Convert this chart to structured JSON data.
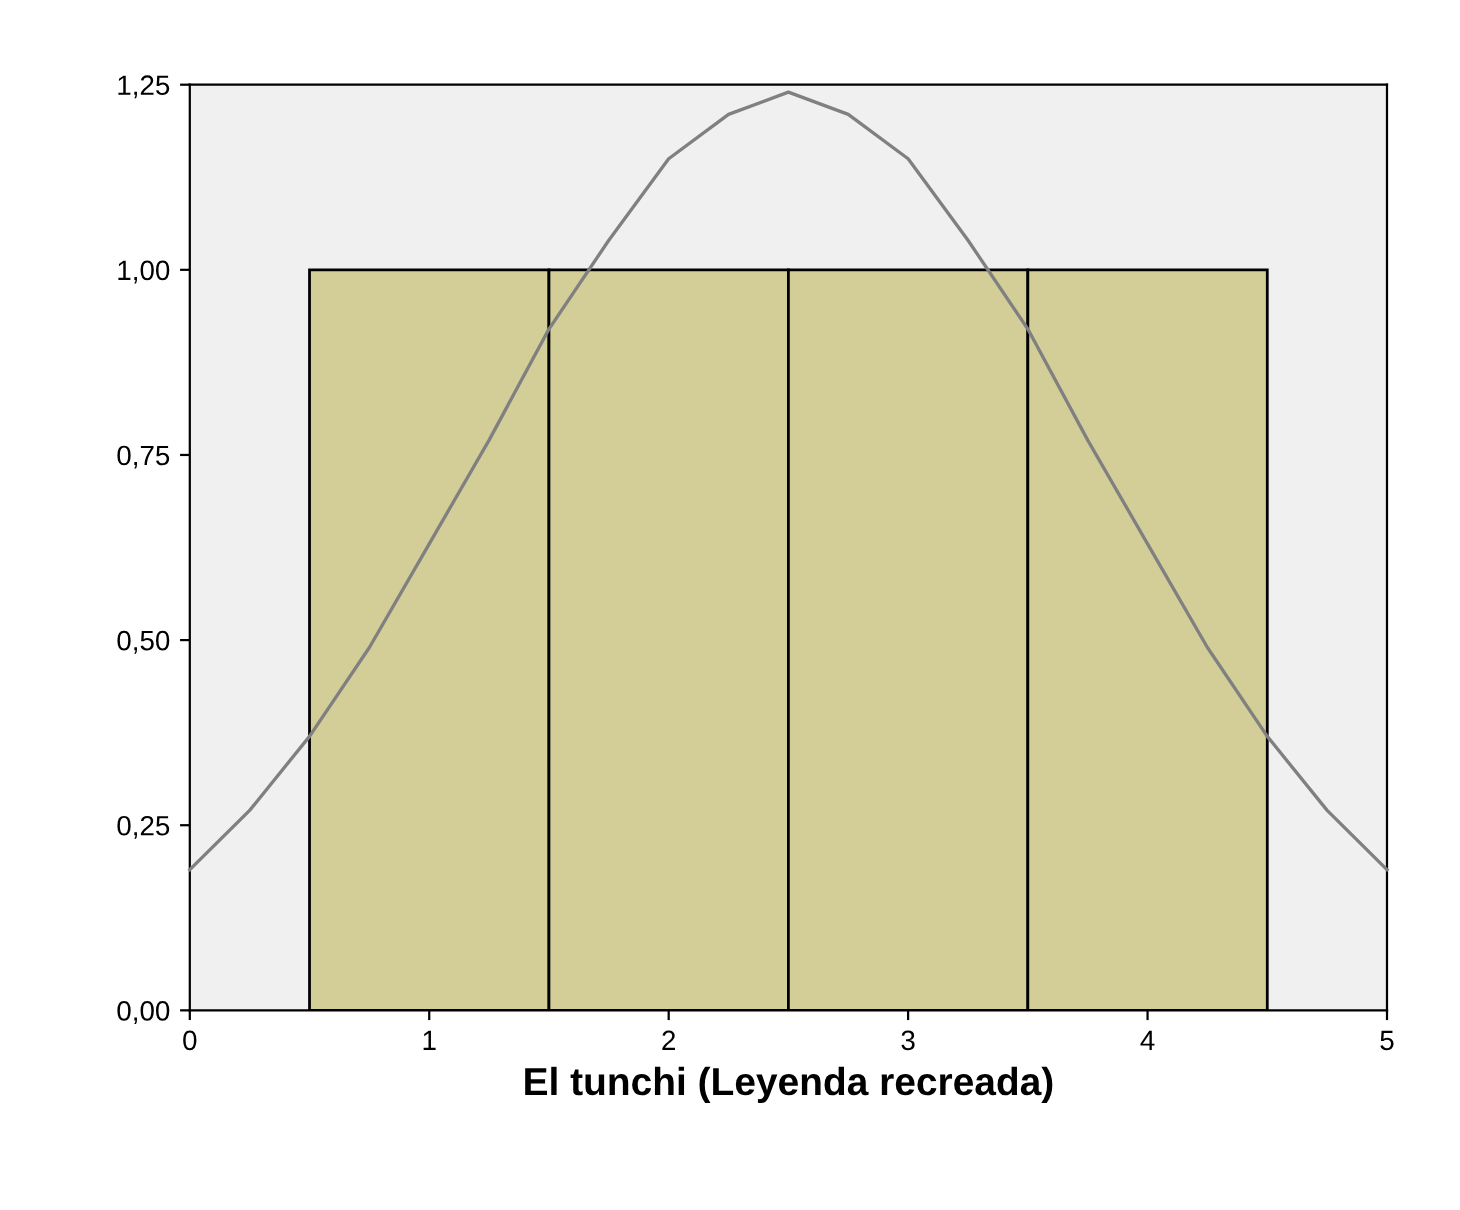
{
  "chart_data": {
    "type": "histogram",
    "xlabel": "El tunchi (Leyenda recreada)",
    "series": [
      {
        "bins": [
          0.5,
          1.5,
          2.5,
          3.5,
          4.5
        ],
        "values": [
          1,
          1,
          1,
          1
        ],
        "color": "#d3ce97"
      },
      {
        "type": "line",
        "color": "#808080",
        "marker": "none",
        "line_style": "solid",
        "x": [
          0,
          0.25,
          0.5,
          0.75,
          1,
          1.25,
          1.5,
          1.75,
          2,
          2.25,
          2.5,
          2.75,
          3,
          3.25,
          3.5,
          3.75,
          4,
          4.25,
          4.5,
          4.75,
          5
        ],
        "values": [
          0.19,
          0.27,
          0.37,
          0.49,
          0.63,
          0.77,
          0.92,
          1.04,
          1.15,
          1.21,
          1.24,
          1.21,
          1.15,
          1.04,
          0.92,
          0.77,
          0.63,
          0.49,
          0.37,
          0.27,
          0.19
        ]
      }
    ],
    "xlim": [
      0,
      5
    ],
    "xticks": [
      0,
      1,
      2,
      3,
      4,
      5
    ],
    "ylim": [
      0,
      1.25
    ],
    "yticks": [
      {
        "value": 0,
        "label": "0,00"
      },
      {
        "value": 0.25,
        "label": "0,25"
      },
      {
        "value": 0.5,
        "label": "0,50"
      },
      {
        "value": 0.75,
        "label": "0,75"
      },
      {
        "value": 1,
        "label": "1,00"
      },
      {
        "value": 1.25,
        "label": "1,25"
      }
    ],
    "grid": false,
    "legend": false
  }
}
